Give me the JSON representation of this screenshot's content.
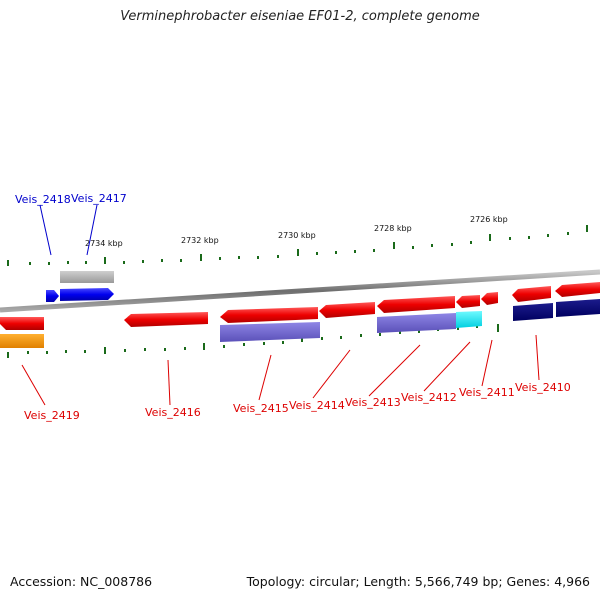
{
  "title": "Verminephrobacter eiseniae EF01-2, complete genome",
  "footer": {
    "accession": "Accession: NC_008786",
    "summary": "Topology: circular; Length: 5,566,749 bp; Genes: 4,966"
  },
  "scale": {
    "ticks": [
      "2734 kbp",
      "2732 kbp",
      "2730 kbp",
      "2728 kbp",
      "2726 kbp"
    ]
  },
  "colors": {
    "forward_gene": "#0000ee",
    "reverse_gene": "#ee0000",
    "backbone": "#888888",
    "tick": "#1a6a1a"
  },
  "genes": {
    "forward": [
      {
        "label": "Veis_2418",
        "color": "#0000ee"
      },
      {
        "label": "Veis_2417",
        "color": "#0000ee"
      }
    ],
    "reverse": [
      {
        "label": "Veis_2419",
        "color": "#ee0000"
      },
      {
        "label": "Veis_2416",
        "color": "#ee0000"
      },
      {
        "label": "Veis_2415",
        "color": "#ee0000"
      },
      {
        "label": "Veis_2414",
        "color": "#ee0000"
      },
      {
        "label": "Veis_2413",
        "color": "#ee0000"
      },
      {
        "label": "Veis_2412",
        "color": "#ee0000"
      },
      {
        "label": "Veis_2411",
        "color": "#ee0000"
      },
      {
        "label": "Veis_2410",
        "color": "#ee0000"
      }
    ]
  }
}
